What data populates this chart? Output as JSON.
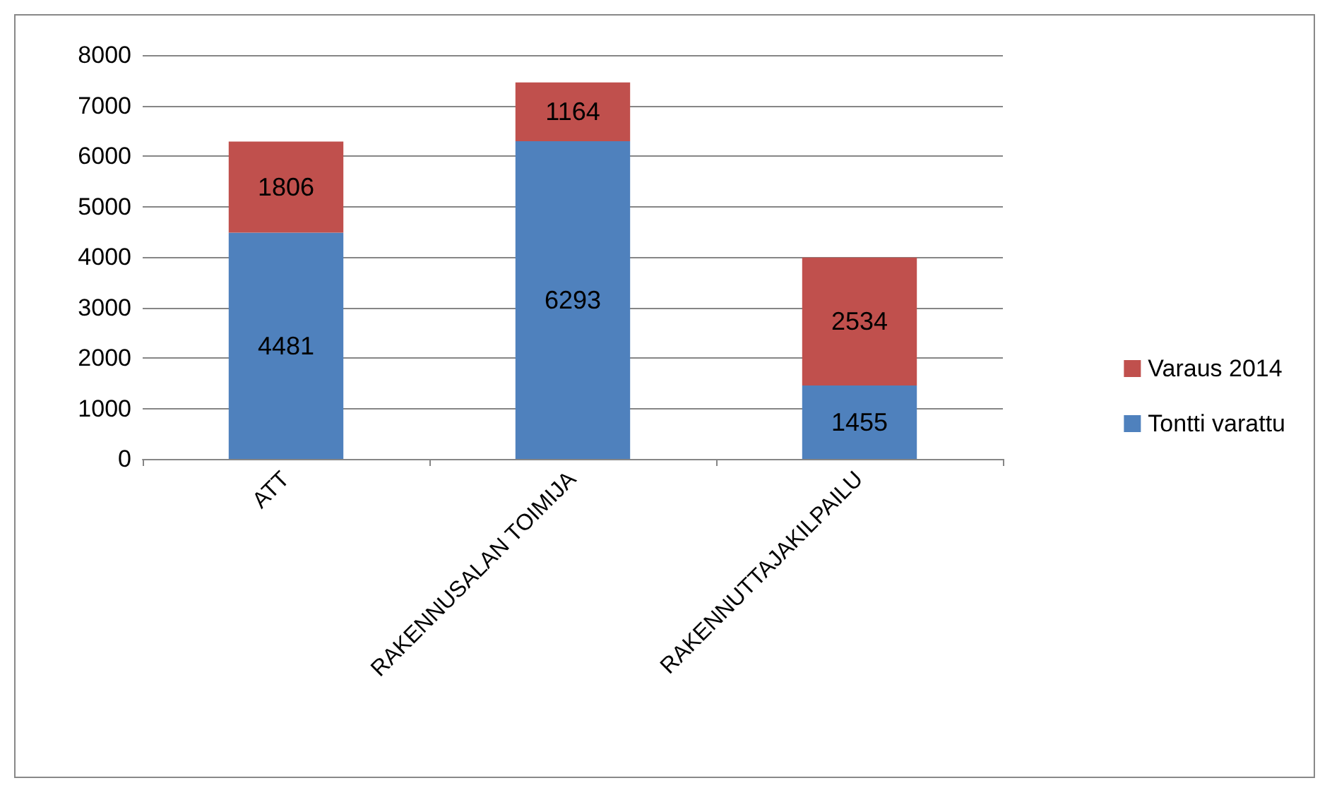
{
  "chart_data": {
    "type": "bar",
    "stacked": true,
    "categories": [
      "ATT",
      "RAKENNUSALAN TOIMIJA",
      "RAKENNUTTAJAKILPAILU"
    ],
    "series": [
      {
        "name": "Tontti varattu",
        "color": "#4f81bd",
        "values": [
          4481,
          6293,
          1455
        ]
      },
      {
        "name": "Varaus 2014",
        "color": "#c0504d",
        "values": [
          1806,
          1164,
          2534
        ]
      }
    ],
    "ylim": [
      0,
      8000
    ],
    "yticks": [
      0,
      1000,
      2000,
      3000,
      4000,
      5000,
      6000,
      7000,
      8000
    ],
    "grid": "y",
    "legend": "right",
    "data_labels": true
  }
}
